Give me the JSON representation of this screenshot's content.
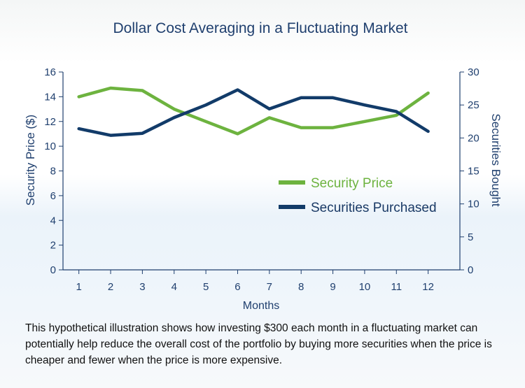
{
  "chart_data": {
    "type": "line",
    "title": "Dollar Cost Averaging in a Fluctuating Market",
    "xlabel": "Months",
    "ylabel_left": "Security Price ($)",
    "ylabel_right": "Securities Bought",
    "x": [
      1,
      2,
      3,
      4,
      5,
      6,
      7,
      8,
      9,
      10,
      11,
      12
    ],
    "ylim_left": [
      0,
      16
    ],
    "ylim_right": [
      0,
      30
    ],
    "yticks_left": [
      0,
      2,
      4,
      6,
      8,
      10,
      12,
      14,
      16
    ],
    "yticks_right": [
      0,
      5,
      10,
      15,
      20,
      25,
      30
    ],
    "series": [
      {
        "name": "Security Price",
        "axis": "left",
        "color": "#6db33f",
        "values": [
          14.0,
          14.7,
          14.5,
          13.0,
          12.0,
          11.0,
          12.3,
          11.5,
          11.5,
          12.0,
          12.5,
          14.3
        ]
      },
      {
        "name": "Securities Purchased",
        "axis": "right",
        "color": "#123b69",
        "values": [
          21.4,
          20.4,
          20.7,
          23.1,
          25.0,
          27.3,
          24.4,
          26.1,
          26.1,
          25.0,
          24.0,
          21.0
        ]
      }
    ],
    "legend_position": "center-right",
    "grid": false
  },
  "caption": "This hypothetical illustration shows how investing $300 each month in a fluctuating market can potentially help reduce the overall cost of the portfolio by buying more securities when the price is cheaper and fewer when the price is more expensive."
}
